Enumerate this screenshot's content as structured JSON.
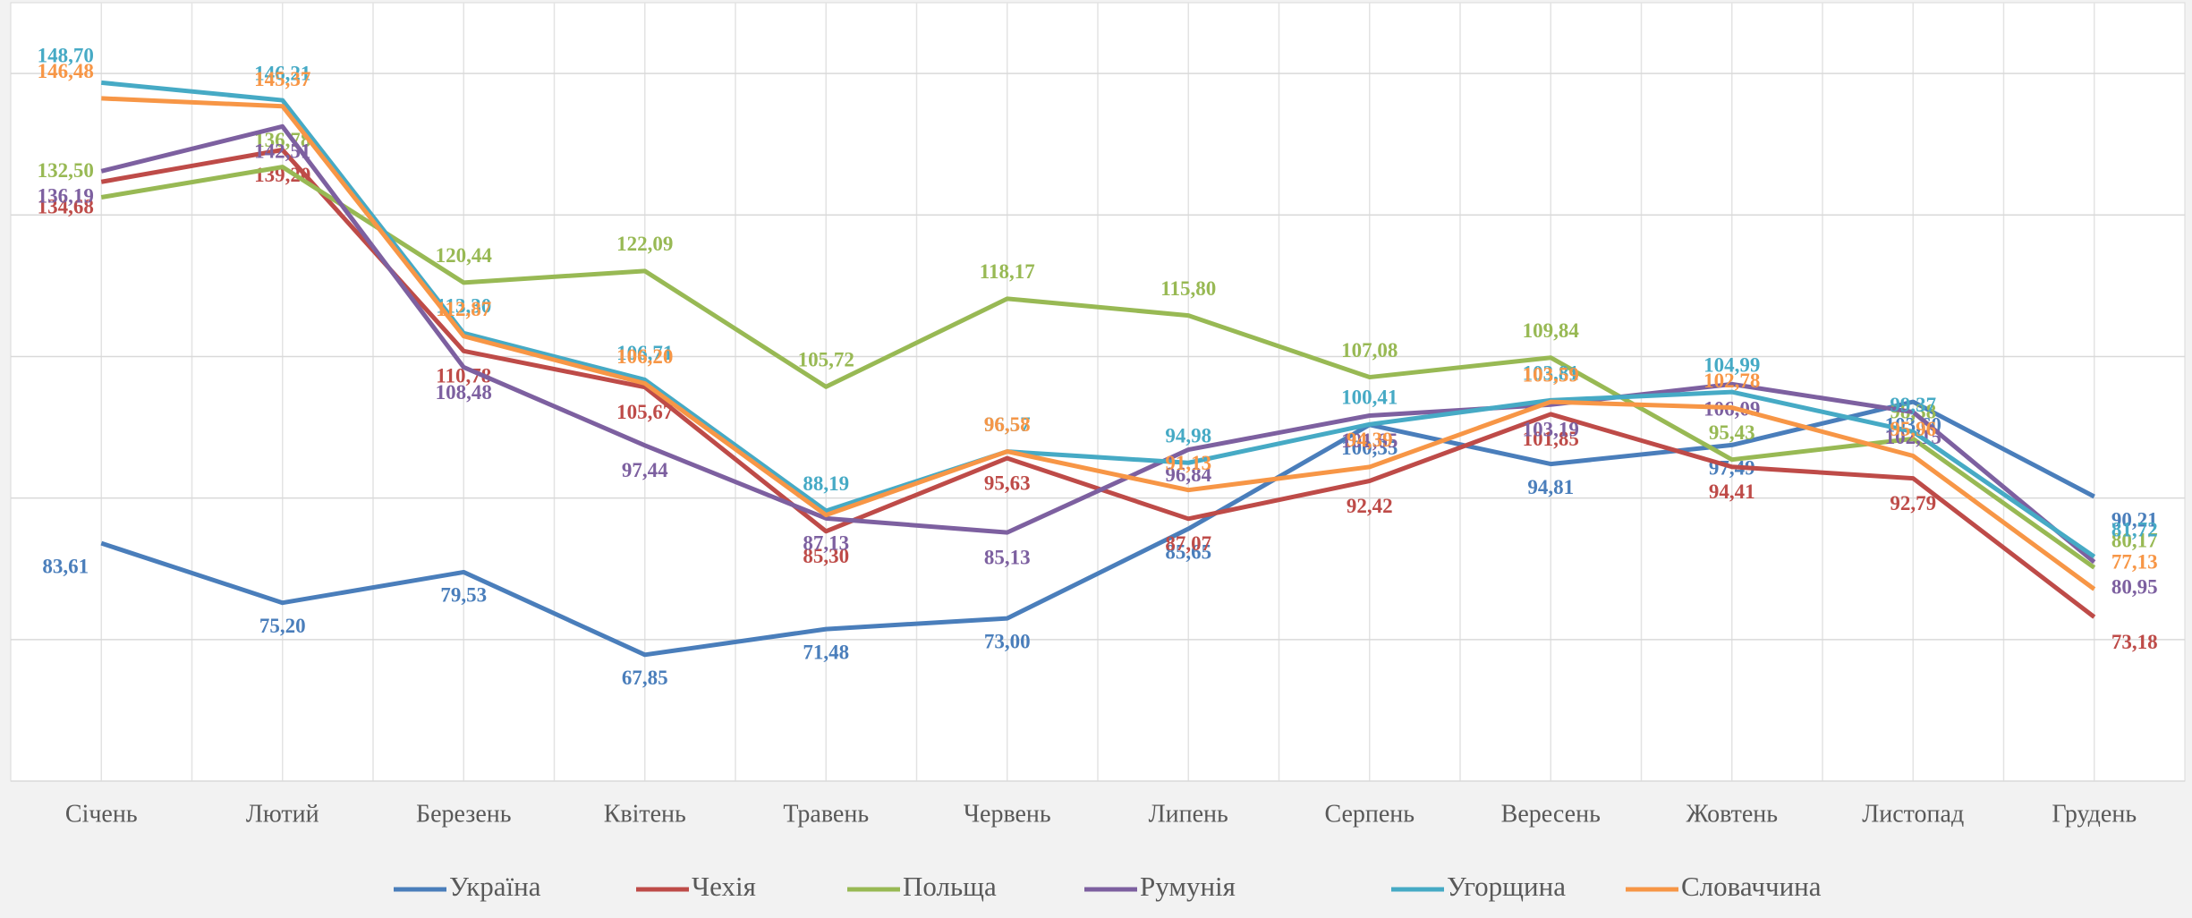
{
  "chart_data": {
    "type": "line",
    "categories": [
      "Січень",
      "Лютий",
      "Березень",
      "Квітень",
      "Травень",
      "Червень",
      "Липень",
      "Серпень",
      "Вересень",
      "Жовтень",
      "Листопад",
      "Грудень"
    ],
    "series": [
      {
        "name": "Україна",
        "color": "#4a7ebb",
        "values": [
          83.61,
          75.2,
          79.53,
          67.85,
          71.48,
          73.0,
          85.65,
          100.35,
          94.81,
          97.49,
          103.6,
          90.21
        ],
        "value_labels": [
          "83,61",
          "75,20",
          "79,53",
          "67,85",
          "71,48",
          "73,00",
          "85,65",
          "100,35",
          "94,81",
          "97,49",
          "103,60",
          "90,21"
        ]
      },
      {
        "name": "Чехія",
        "color": "#be4b48",
        "values": [
          134.68,
          139.2,
          110.78,
          105.67,
          85.3,
          95.63,
          87.07,
          92.42,
          101.85,
          94.41,
          92.79,
          73.18
        ],
        "value_labels": [
          "134,68",
          "139,20",
          "110,78",
          "105,67",
          "85,30",
          "95,63",
          "87,07",
          "92,42",
          "101,85",
          "94,41",
          "92,79",
          "73,18"
        ]
      },
      {
        "name": "Польща",
        "color": "#98b954",
        "values": [
          132.5,
          136.78,
          120.44,
          122.09,
          105.72,
          118.17,
          115.8,
          107.08,
          109.84,
          95.43,
          98.38,
          80.17
        ],
        "value_labels": [
          "132,50",
          "136,78",
          "120,44",
          "122,09",
          "105,72",
          "118,17",
          "115,80",
          "107,08",
          "109,84",
          "95,43",
          "98,38",
          "80,17"
        ]
      },
      {
        "name": "Румунія",
        "color": "#7d60a0",
        "values": [
          136.19,
          142.51,
          108.48,
          97.44,
          87.13,
          85.13,
          96.84,
          101.65,
          103.19,
          106.09,
          102.15,
          80.95
        ],
        "value_labels": [
          "136,19",
          "142,51",
          "108,48",
          "97,44",
          "87,13",
          "85,13",
          "96,84",
          "101,65",
          "103,19",
          "106,09",
          "102,15",
          "80,95"
        ]
      },
      {
        "name": "Угорщина",
        "color": "#46aac5",
        "values": [
          148.7,
          146.21,
          113.3,
          106.71,
          88.19,
          96.57,
          94.98,
          100.41,
          103.81,
          104.99,
          99.37,
          81.72
        ],
        "value_labels": [
          "148,70",
          "146,21",
          "113,30",
          "106,71",
          "88,19",
          "96,57",
          "94,98",
          "100,41",
          "103,81",
          "104,99",
          "99,37",
          "81,72"
        ]
      },
      {
        "name": "Словаччина",
        "color": "#f79646",
        "values": [
          146.48,
          145.37,
          112.87,
          106.2,
          87.6,
          96.58,
          91.13,
          94.39,
          103.59,
          102.78,
          95.96,
          77.13
        ],
        "value_labels": [
          "146,48",
          "145,37",
          "112,87",
          "106,20",
          null,
          "96,58",
          "91,13",
          "94,39",
          "103,59",
          "102,78",
          "95,96",
          "77,13"
        ]
      }
    ],
    "ylim": [
      50,
      160
    ],
    "yticks": [
      50,
      70,
      90,
      110,
      130,
      150
    ],
    "grid": true,
    "legend": "bottom"
  }
}
